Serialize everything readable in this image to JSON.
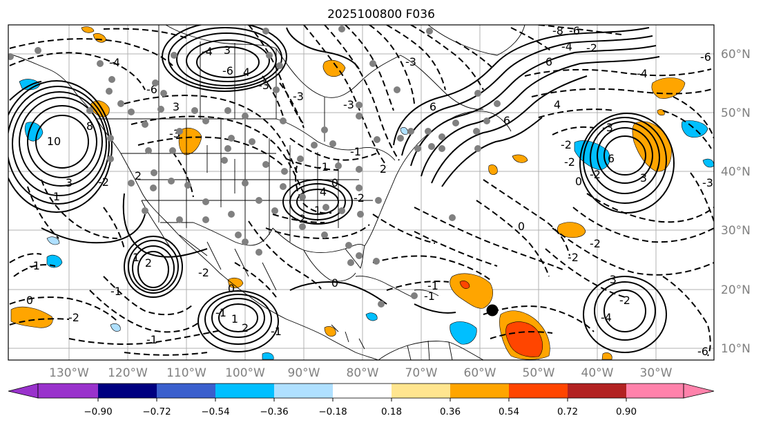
{
  "title": "2025100800 F036",
  "longitude_labels": [
    "130°W",
    "120°W",
    "110°W",
    "100°W",
    "90°W",
    "80°W",
    "70°W",
    "60°W",
    "50°W",
    "40°W",
    "30°W"
  ],
  "latitude_labels": [
    "60°N",
    "50°N",
    "40°N",
    "30°N",
    "20°N",
    "10°N"
  ],
  "colorbar": {
    "colors": [
      "#9932cc",
      "#000080",
      "#3a5fcd",
      "#00bfff",
      "#afe0ff",
      "#ffffff",
      "#ffe58f",
      "#ffa500",
      "#ff4500",
      "#b22222",
      "#ff82ab"
    ],
    "under_color": "#9932cc",
    "over_color": "#ff82ab",
    "tick_labels": [
      "−0.90",
      "−0.72",
      "−0.54",
      "−0.36",
      "−0.18",
      "0.18",
      "0.36",
      "0.54",
      "0.72",
      "0.90"
    ]
  },
  "contour_labels": [
    "-4",
    "3",
    "4",
    "-3",
    "-1",
    "-8",
    "-6",
    "-4",
    "-2",
    "-2",
    "4",
    "3",
    "6",
    "-6",
    "10",
    "8",
    "-2",
    "2",
    "-3",
    "3",
    "1",
    "-1",
    "-1",
    "0",
    "-2",
    "-1",
    "-2",
    "0",
    "2",
    "1",
    "-1",
    "1",
    "2",
    "-1",
    "-2",
    "4",
    "0",
    "0",
    "-1",
    "-1",
    "-4",
    "-3",
    "-2",
    "-3",
    "-6",
    "-4",
    "-2",
    "6",
    "0",
    "-2",
    "6",
    "6",
    "3",
    "-6",
    "-3",
    "-1",
    "-4",
    "-3",
    "0",
    "-3",
    "-2",
    "-2",
    "2",
    "-2",
    "1",
    "-6",
    "-3"
  ]
}
